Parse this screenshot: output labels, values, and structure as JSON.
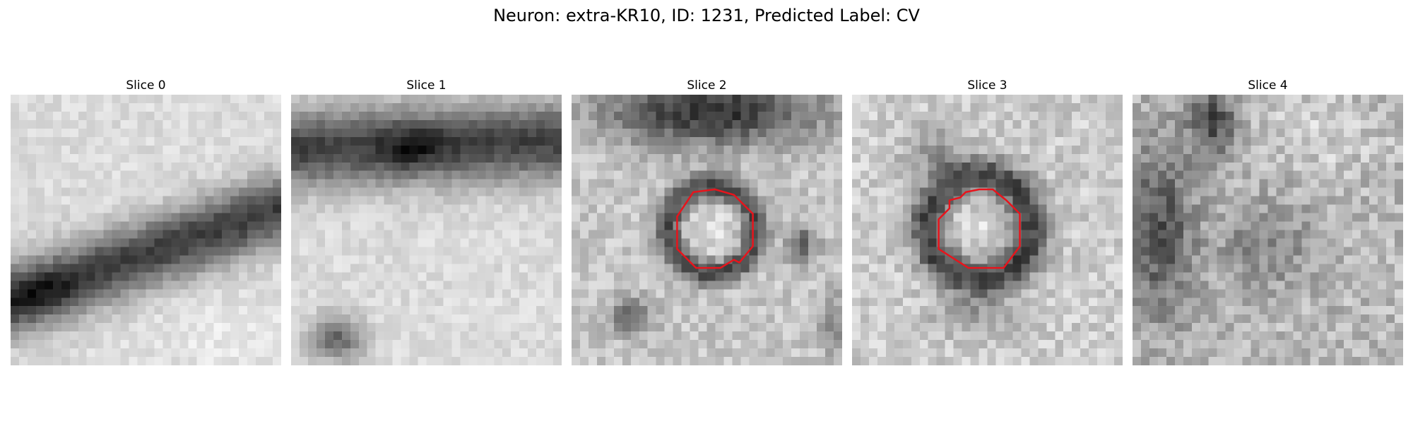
{
  "figure": {
    "title": "Neuron: extra-KR10, ID: 1231, Predicted Label: CV"
  },
  "slices": [
    {
      "title": "Slice 0",
      "has_outline": false,
      "description": "grayscale EM patch with dark diagonal band across lower-left"
    },
    {
      "title": "Slice 1",
      "has_outline": false,
      "description": "grayscale EM patch with dark band across top and light region below"
    },
    {
      "title": "Slice 2",
      "has_outline": true,
      "description": "grayscale EM patch with dark ring around light vesicle, red outline"
    },
    {
      "title": "Slice 3",
      "has_outline": true,
      "description": "grayscale EM patch with dark ring around light vesicle, red outline"
    },
    {
      "title": "Slice 4",
      "has_outline": false,
      "description": "grayscale EM patch with mottled texture"
    }
  ],
  "colors": {
    "outline": "#e8141c",
    "background": "#ffffff"
  }
}
